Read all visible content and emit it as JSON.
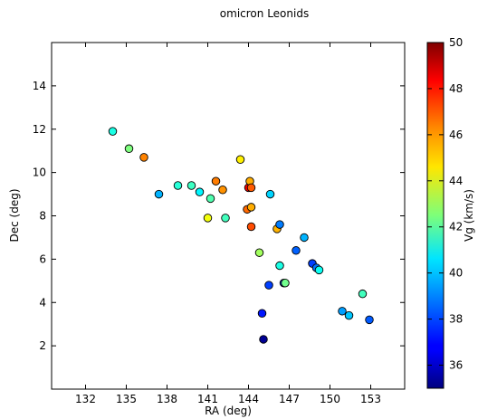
{
  "chart_data": {
    "type": "scatter",
    "title": "omicron Leonids",
    "xlabel": "RA (deg)",
    "ylabel": "Dec (deg)",
    "xlim": [
      129.5,
      155.5
    ],
    "ylim": [
      0,
      16
    ],
    "xticks": [
      132,
      135,
      138,
      141,
      144,
      147,
      150,
      153
    ],
    "yticks": [
      2,
      4,
      6,
      8,
      10,
      12,
      14
    ],
    "grid": false,
    "colorbar": {
      "label": "Vg (km/s)",
      "range": [
        35,
        50
      ],
      "ticks": [
        36,
        38,
        40,
        42,
        44,
        46,
        48,
        50
      ],
      "colormap": "jet"
    },
    "points": [
      {
        "x": 134.0,
        "y": 11.9,
        "c": 41.0
      },
      {
        "x": 135.2,
        "y": 11.1,
        "c": 42.5
      },
      {
        "x": 136.3,
        "y": 10.7,
        "c": 46.2
      },
      {
        "x": 137.4,
        "y": 9.0,
        "c": 39.5
      },
      {
        "x": 138.8,
        "y": 9.4,
        "c": 41.2
      },
      {
        "x": 139.8,
        "y": 9.4,
        "c": 41.5
      },
      {
        "x": 140.4,
        "y": 9.1,
        "c": 40.5
      },
      {
        "x": 141.0,
        "y": 7.9,
        "c": 44.2
      },
      {
        "x": 141.2,
        "y": 8.8,
        "c": 41.8
      },
      {
        "x": 141.6,
        "y": 9.6,
        "c": 46.3
      },
      {
        "x": 142.1,
        "y": 9.2,
        "c": 46.0
      },
      {
        "x": 142.3,
        "y": 7.9,
        "c": 41.6
      },
      {
        "x": 143.4,
        "y": 10.6,
        "c": 44.6
      },
      {
        "x": 143.9,
        "y": 8.3,
        "c": 46.6
      },
      {
        "x": 144.0,
        "y": 9.3,
        "c": 48.2
      },
      {
        "x": 144.1,
        "y": 9.6,
        "c": 45.6
      },
      {
        "x": 144.2,
        "y": 9.3,
        "c": 46.8
      },
      {
        "x": 144.2,
        "y": 8.4,
        "c": 45.6
      },
      {
        "x": 144.2,
        "y": 7.5,
        "c": 47.0
      },
      {
        "x": 144.8,
        "y": 6.3,
        "c": 43.0
      },
      {
        "x": 145.0,
        "y": 3.5,
        "c": 37.2
      },
      {
        "x": 145.1,
        "y": 2.3,
        "c": 35.3
      },
      {
        "x": 145.5,
        "y": 4.8,
        "c": 37.8
      },
      {
        "x": 145.6,
        "y": 9.0,
        "c": 40.0
      },
      {
        "x": 146.1,
        "y": 7.4,
        "c": 45.5
      },
      {
        "x": 146.3,
        "y": 7.6,
        "c": 38.7
      },
      {
        "x": 146.3,
        "y": 5.7,
        "c": 41.0
      },
      {
        "x": 146.6,
        "y": 4.9,
        "c": 38.0
      },
      {
        "x": 146.7,
        "y": 4.9,
        "c": 42.3
      },
      {
        "x": 147.5,
        "y": 6.4,
        "c": 38.3
      },
      {
        "x": 148.1,
        "y": 7.0,
        "c": 39.5
      },
      {
        "x": 148.7,
        "y": 5.8,
        "c": 37.8
      },
      {
        "x": 149.0,
        "y": 5.6,
        "c": 38.6
      },
      {
        "x": 149.2,
        "y": 5.5,
        "c": 40.8
      },
      {
        "x": 150.9,
        "y": 3.6,
        "c": 39.2
      },
      {
        "x": 151.4,
        "y": 3.4,
        "c": 39.8
      },
      {
        "x": 152.4,
        "y": 4.4,
        "c": 41.6
      },
      {
        "x": 152.9,
        "y": 3.2,
        "c": 38.2
      }
    ]
  }
}
